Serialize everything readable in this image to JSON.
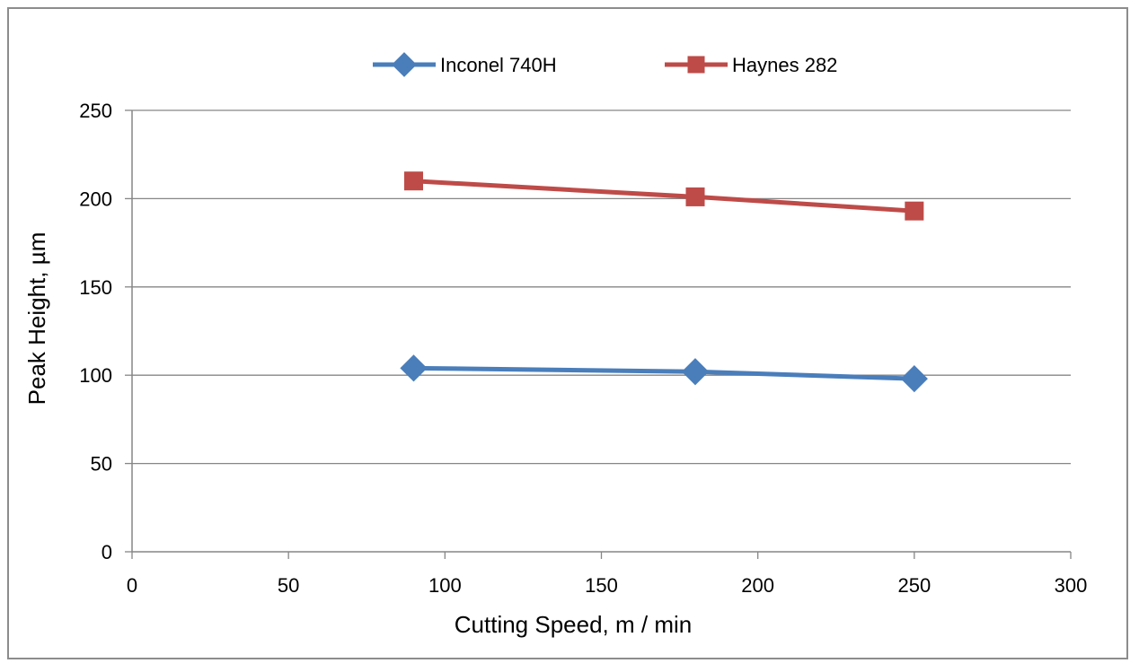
{
  "chart_data": {
    "type": "line",
    "title": "",
    "xlabel": "Cutting Speed, m / min",
    "ylabel": "Peak Height, µm",
    "xlim": [
      0,
      300
    ],
    "ylim": [
      0,
      250
    ],
    "xticks": [
      0,
      50,
      100,
      150,
      200,
      250,
      300
    ],
    "yticks": [
      0,
      50,
      100,
      150,
      200,
      250
    ],
    "xtick_labels": [
      "0",
      "50",
      "100",
      "150",
      "200",
      "250",
      "300"
    ],
    "ytick_labels": [
      "0",
      "50",
      "100",
      "150",
      "200",
      "250"
    ],
    "grid": "horizontal",
    "legend_position": "top-center",
    "series": [
      {
        "name": "Inconel 740H",
        "marker": "diamond",
        "color": "#4a7ebb",
        "x": [
          90,
          180,
          250
        ],
        "y": [
          104,
          102,
          98
        ]
      },
      {
        "name": "Haynes 282",
        "marker": "square",
        "color": "#be4b48",
        "x": [
          90,
          180,
          250
        ],
        "y": [
          210,
          201,
          193
        ]
      }
    ]
  }
}
